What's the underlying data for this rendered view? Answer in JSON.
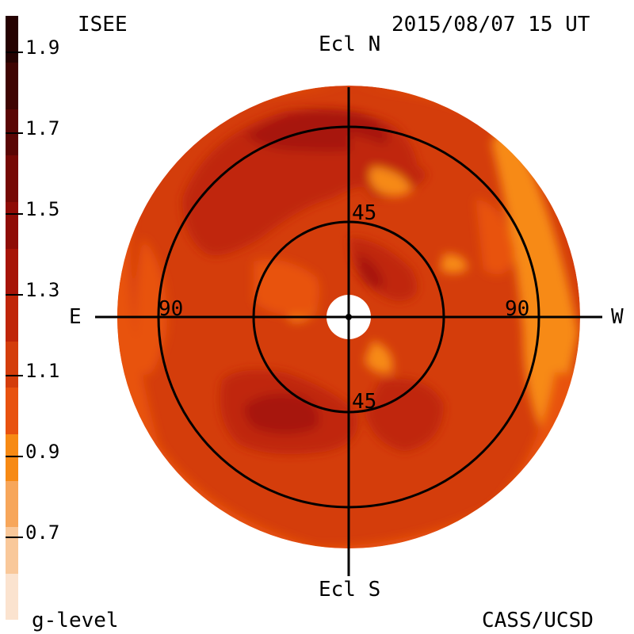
{
  "header": {
    "source": "ISEE",
    "timestamp": "2015/08/07 15 UT"
  },
  "footer": {
    "legend_title": "g-level",
    "credit": "CASS/UCSD"
  },
  "axes": {
    "north": "Ecl N",
    "south": "Ecl S",
    "east": "E",
    "west": "W",
    "ring_inner": "45",
    "ring_inner_south": "45",
    "ring_outer_east": "90",
    "ring_outer_west": "90"
  },
  "colorbar": {
    "title": "g-level",
    "tick_labels": [
      "1.9",
      "1.7",
      "1.5",
      "1.3",
      "1.1",
      "0.9",
      "0.7"
    ],
    "colors": [
      "#fbe3cf",
      "#f9c89a",
      "#f7a65a",
      "#f78a14",
      "#e8520f",
      "#d43d0b",
      "#c02508",
      "#a71407",
      "#8f0c06",
      "#760905",
      "#5a0604",
      "#3f0402",
      "#250201"
    ]
  },
  "map": {
    "background_color": "#d43d0b",
    "palette": {
      "light": "#f78a14",
      "mid": "#e8520f",
      "base": "#d43d0b",
      "dark": "#c02508",
      "darker": "#a71407",
      "darkest": "#8f0c06"
    }
  }
}
